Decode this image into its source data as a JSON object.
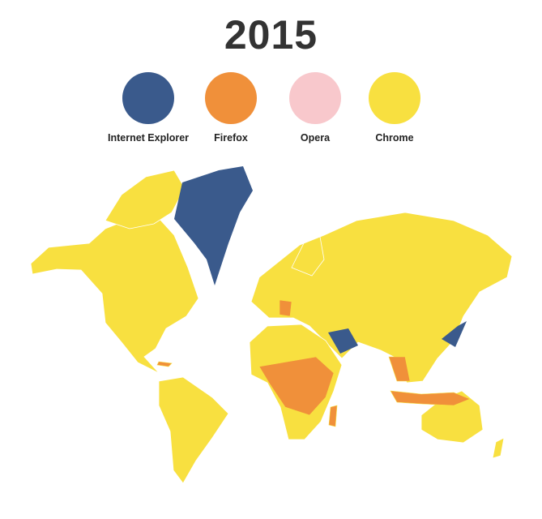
{
  "title": "2015",
  "legend": [
    {
      "label": "Internet Explorer",
      "color": "#3a5a8c"
    },
    {
      "label": "Firefox",
      "color": "#f0903a"
    },
    {
      "label": "Opera",
      "color": "#f8c8cc"
    },
    {
      "label": "Chrome",
      "color": "#f8e040"
    }
  ],
  "map": {
    "default_browser": "Chrome",
    "highlighted_regions": [
      {
        "region": "Greenland",
        "browser": "Internet Explorer"
      },
      {
        "region": "Iran",
        "browser": "Internet Explorer"
      },
      {
        "region": "Japan",
        "browser": "Internet Explorer"
      },
      {
        "region": "Central Africa",
        "browser": "Firefox"
      },
      {
        "region": "Central Europe",
        "browser": "Firefox"
      },
      {
        "region": "Southeast Asia",
        "browser": "Firefox"
      },
      {
        "region": "Indonesia",
        "browser": "Firefox"
      },
      {
        "region": "Madagascar",
        "browser": "Firefox"
      }
    ]
  }
}
